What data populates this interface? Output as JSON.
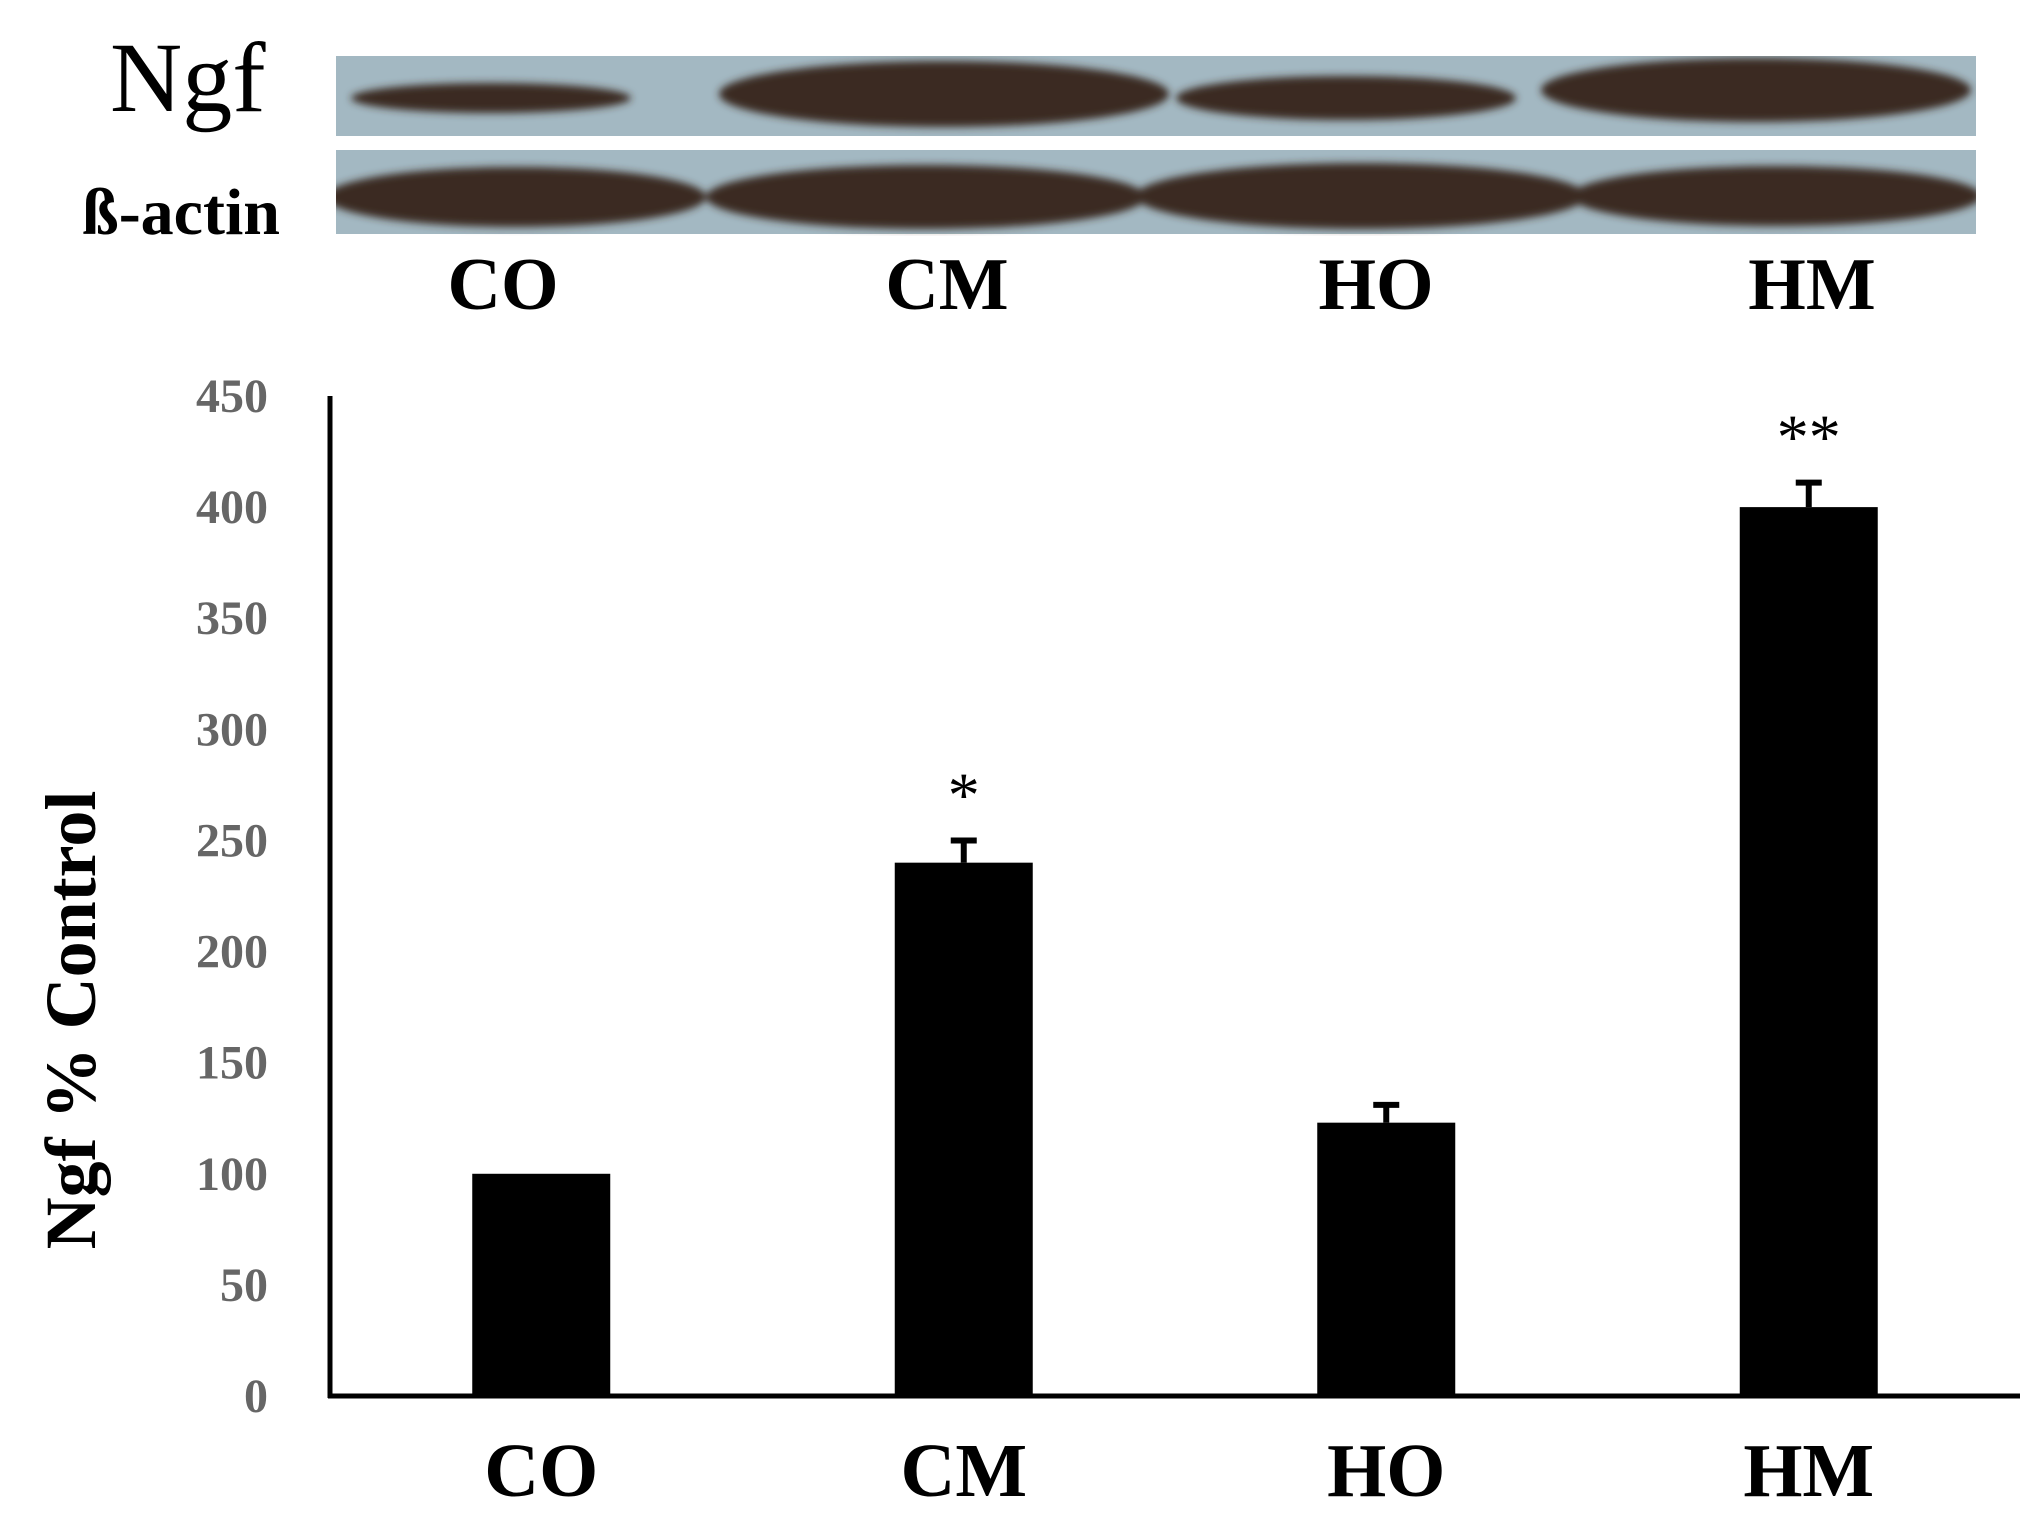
{
  "blot": {
    "target_label": "Ngf",
    "loading_label": "ß-actin",
    "lanes": [
      "CO",
      "CM",
      "HO",
      "HM"
    ],
    "background_color": "#a3b8c2",
    "band_color": "#3a2a22"
  },
  "chart_data": {
    "type": "bar",
    "categories": [
      "CO",
      "CM",
      "HO",
      "HM"
    ],
    "values": [
      100,
      240,
      123,
      400
    ],
    "errors": [
      0,
      10,
      8,
      11
    ],
    "annotations": [
      "",
      "*",
      "",
      "**"
    ],
    "ylabel": "Ngf % Control",
    "xlabel": "",
    "ylim": [
      0,
      450
    ],
    "yticks": [
      0,
      50,
      100,
      150,
      200,
      250,
      300,
      350,
      400,
      450
    ],
    "bar_color": "#000000",
    "tick_label_color": "#666666",
    "grid": false
  }
}
